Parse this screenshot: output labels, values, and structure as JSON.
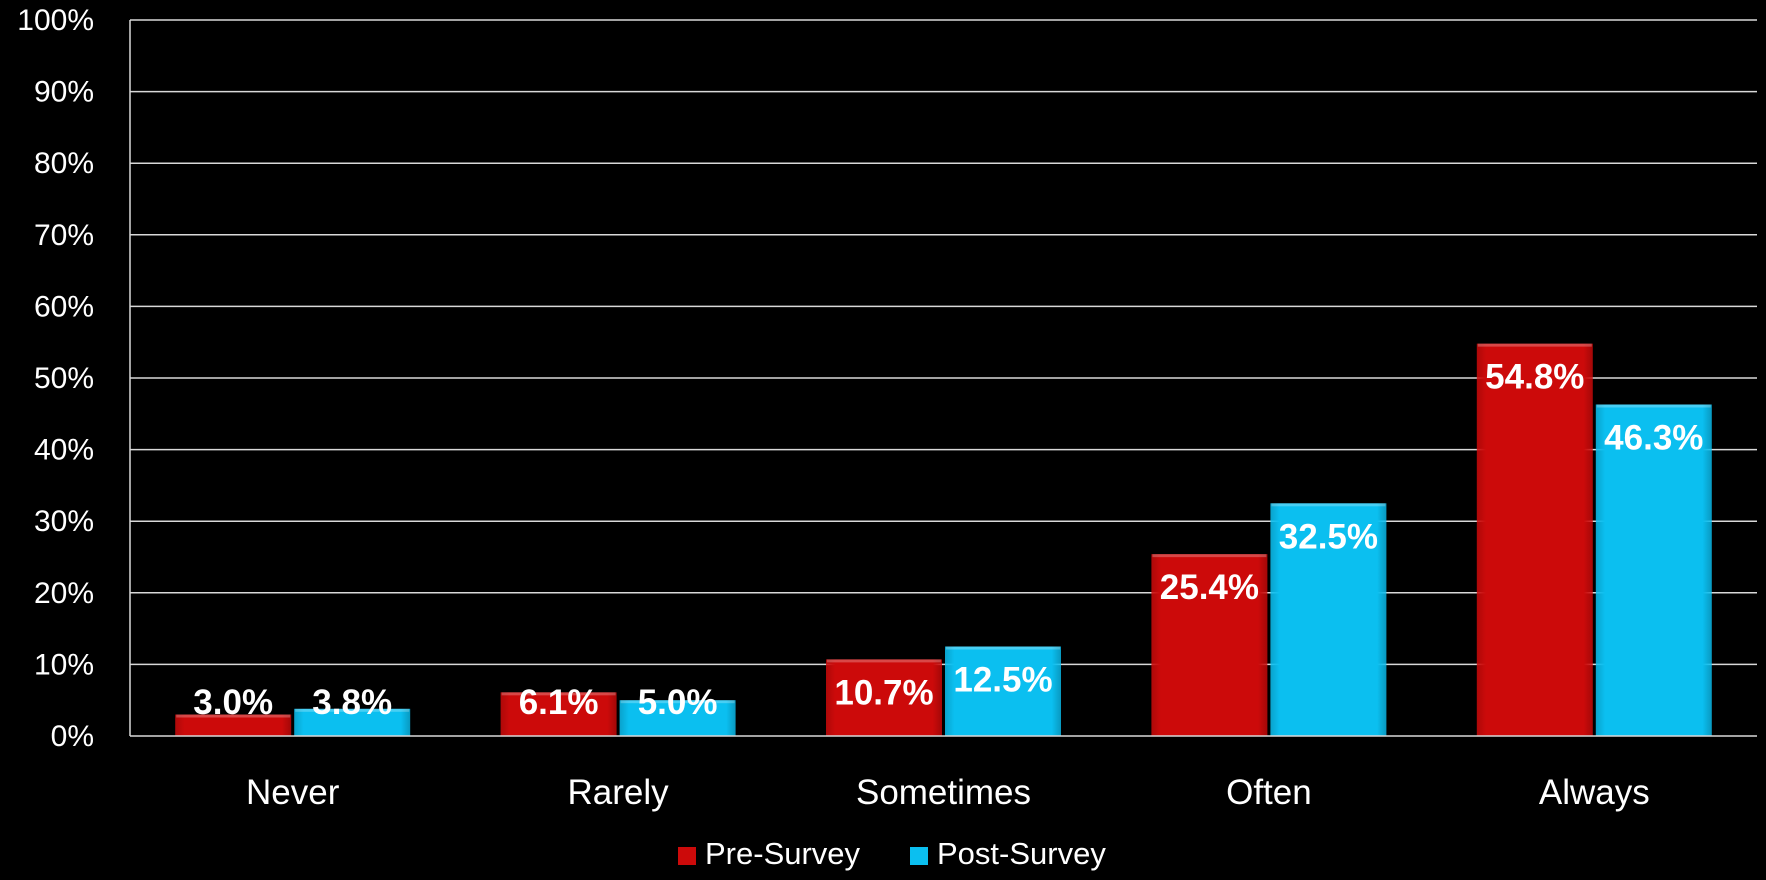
{
  "chart_data": {
    "type": "bar",
    "categories": [
      "Never",
      "Rarely",
      "Sometimes",
      "Often",
      "Always"
    ],
    "series": [
      {
        "name": "Pre-Survey",
        "color": "#cc0a0a",
        "values": [
          3.0,
          6.1,
          10.7,
          25.4,
          54.8
        ],
        "labels": [
          "3.0%",
          "6.1%",
          "10.7%",
          "25.4%",
          "54.8%"
        ]
      },
      {
        "name": "Post-Survey",
        "color": "#0bbff0",
        "values": [
          3.8,
          5.0,
          12.5,
          32.5,
          46.3
        ],
        "labels": [
          "3.8%",
          "5.0%",
          "12.5%",
          "32.5%",
          "46.3%"
        ]
      }
    ],
    "y_ticks": [
      "0%",
      "10%",
      "20%",
      "30%",
      "40%",
      "50%",
      "60%",
      "70%",
      "80%",
      "90%",
      "100%"
    ],
    "ylim": [
      0,
      100
    ],
    "grid": true,
    "legend_position": "bottom",
    "background": "#000000",
    "text_color": "#ffffff",
    "gridline_color": "#d9d9d9"
  }
}
